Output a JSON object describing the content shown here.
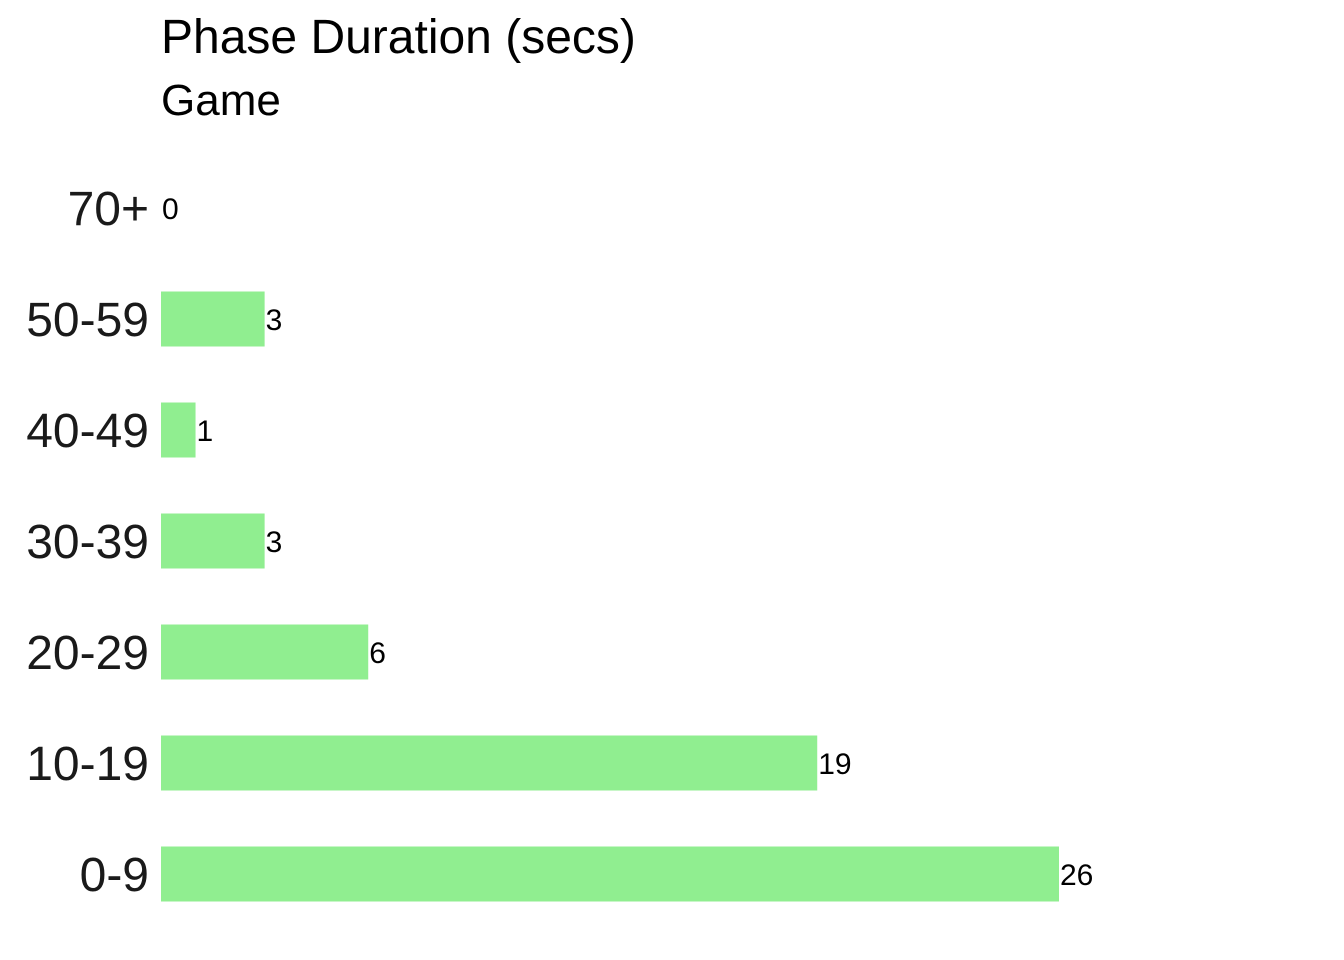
{
  "chart_data": {
    "type": "bar",
    "orientation": "horizontal",
    "title": "Phase Duration (secs)",
    "subtitle": "Game",
    "categories": [
      "70+",
      "50-59",
      "40-49",
      "30-39",
      "20-29",
      "10-19",
      "0-9"
    ],
    "values": [
      0,
      3,
      1,
      3,
      6,
      19,
      26
    ],
    "xlim": [
      0,
      26
    ],
    "grid": false,
    "legend": "none",
    "bar_color": "#90EE90"
  }
}
